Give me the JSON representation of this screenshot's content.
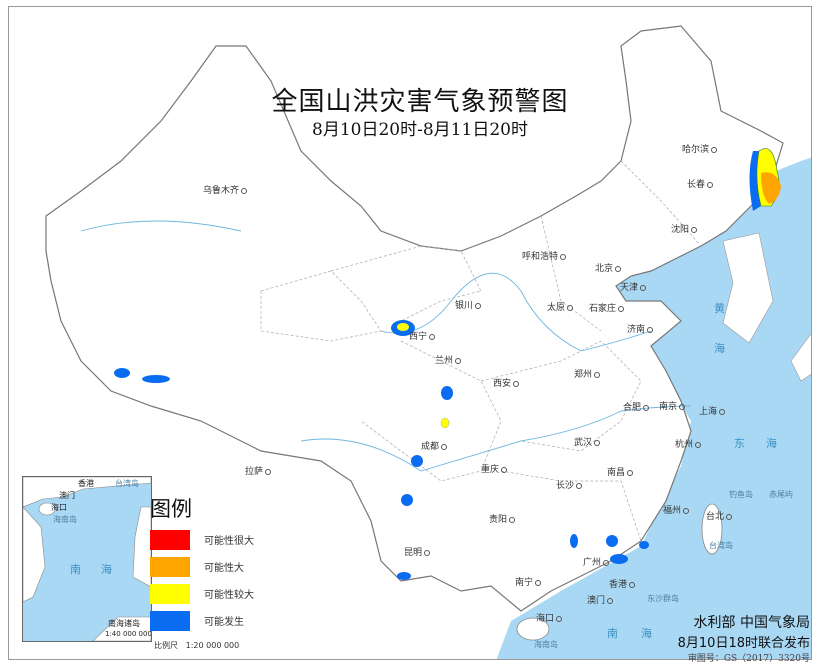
{
  "title": "全国山洪灾害气象预警图",
  "subtitle": "8月10日20时-8月11日20时",
  "legend": {
    "title": "图例",
    "items": [
      {
        "label": "可能性很大",
        "color": "#ff0000"
      },
      {
        "label": "可能性大",
        "color": "#ffa500"
      },
      {
        "label": "可能性较大",
        "color": "#ffff00"
      },
      {
        "label": "可能发生",
        "color": "#0a6cf0"
      }
    ],
    "scale_label": "比例尺",
    "scale_value": "1:20 000 000"
  },
  "publisher": {
    "agencies": "水利部  中国气象局",
    "issued": "8月10日18时联合发布",
    "review_no": "审图号：GS（2017）3320号"
  },
  "inset": {
    "labels": [
      "香港",
      "澳门",
      "海口",
      "海南岛",
      "台湾岛",
      "南",
      "海"
    ],
    "name": "南海诸岛",
    "scale": "1:40 000 000"
  },
  "cities": [
    "乌鲁木齐",
    "哈尔滨",
    "长春",
    "沈阳",
    "呼和浩特",
    "北京",
    "天津",
    "银川",
    "太原",
    "石家庄",
    "西宁",
    "兰州",
    "济南",
    "西安",
    "郑州",
    "合肥",
    "南京",
    "上海",
    "拉萨",
    "成都",
    "武汉",
    "杭州",
    "重庆",
    "南昌",
    "长沙",
    "贵阳",
    "福州",
    "昆明",
    "台北",
    "广州",
    "南宁",
    "香港",
    "澳门",
    "海口"
  ],
  "islands": [
    "台湾岛",
    "钓鱼岛",
    "赤尾屿",
    "东沙群岛",
    "海南岛"
  ],
  "seas": [
    "黄",
    "海",
    "东",
    "海",
    "南",
    "海"
  ],
  "warning_areas": [
    {
      "region": "黑龙江东南-吉林东部",
      "levels": [
        "可能发生",
        "可能性较大",
        "可能性大"
      ]
    },
    {
      "region": "青海东北部",
      "levels": [
        "可能发生",
        "可能性较大"
      ]
    },
    {
      "region": "甘肃南部",
      "levels": [
        "可能发生"
      ]
    },
    {
      "region": "四川北部",
      "levels": [
        "可能性较大"
      ]
    },
    {
      "region": "西藏西部",
      "levels": [
        "可能发生"
      ]
    },
    {
      "region": "四川西南部",
      "levels": [
        "可能发生"
      ]
    },
    {
      "region": "云南",
      "levels": [
        "可能发生"
      ]
    },
    {
      "region": "广东",
      "levels": [
        "可能发生"
      ]
    }
  ],
  "colors": {
    "sea": "#a9d8f4",
    "land": "#ffffff",
    "border": "#888888",
    "river": "#6fb7e0"
  }
}
